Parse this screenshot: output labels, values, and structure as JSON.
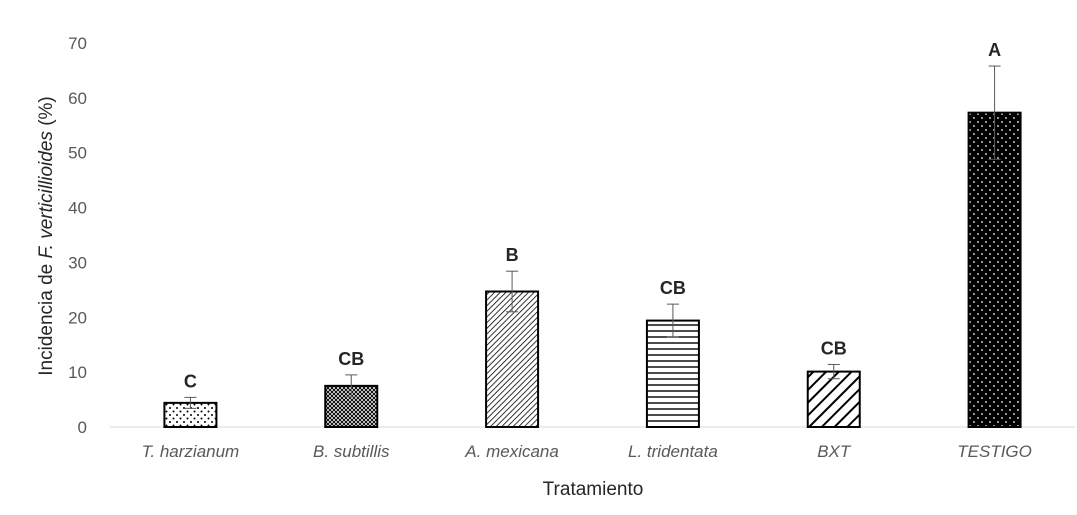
{
  "chart_data": {
    "type": "bar",
    "categories": [
      "T. harzianum",
      "B. subtillis",
      "A. mexicana",
      "L. tridentata",
      "BXT",
      "TESTIGO"
    ],
    "values": [
      4.4,
      7.5,
      24.7,
      19.4,
      10.1,
      57.3
    ],
    "error": [
      1.0,
      2.0,
      3.7,
      3.0,
      1.3,
      8.5
    ],
    "significance_letters": [
      "C",
      "CB",
      "B",
      "CB",
      "CB",
      "A"
    ],
    "bar_patterns": [
      "sparse-dots",
      "crosshatch",
      "fine-diagonal",
      "horizontal-lines",
      "wide-diagonal",
      "black-with-white-dots"
    ],
    "xlabel": "Tratamiento",
    "ylabel_parts": [
      "Incidencia de ",
      "F. verticillioides",
      " (%)"
    ],
    "ylim": [
      0,
      70
    ],
    "yticks": [
      0,
      10,
      20,
      30,
      40,
      50,
      60,
      70
    ],
    "grid": false,
    "colors": {
      "bar_edge": "#000000",
      "error_bar": "#595959",
      "axis_line": "#d9d9d9"
    }
  }
}
